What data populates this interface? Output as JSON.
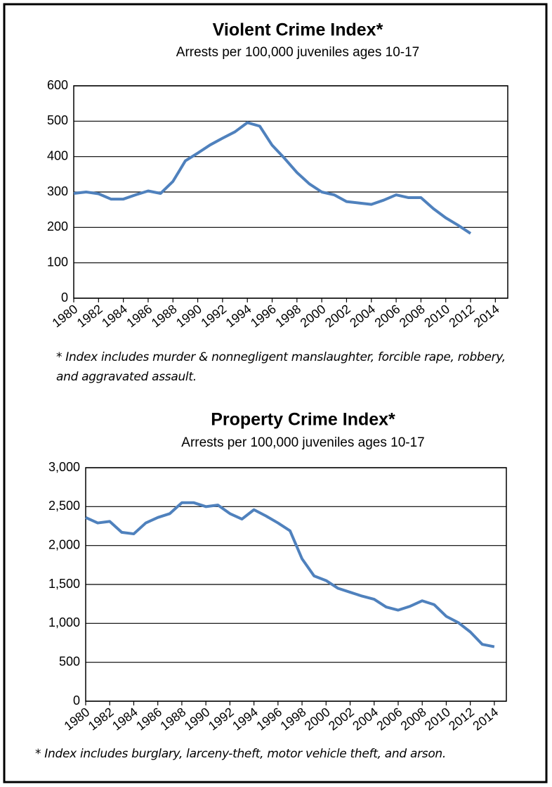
{
  "chart_data": [
    {
      "type": "line",
      "title": "Violent Crime Index*",
      "subtitle": "Arrests per 100,000 juveniles ages 10-17",
      "footnote": "* Index includes murder & nonnegligent manslaughter, forcible rape, robbery, and aggravated assault.",
      "x": [
        1980,
        1981,
        1982,
        1983,
        1984,
        1985,
        1986,
        1987,
        1988,
        1989,
        1990,
        1991,
        1992,
        1993,
        1994,
        1995,
        1996,
        1997,
        1998,
        1999,
        2000,
        2001,
        2002,
        2003,
        2004,
        2005,
        2006,
        2007,
        2008,
        2009,
        2010,
        2011,
        2012
      ],
      "values": [
        296,
        300,
        295,
        280,
        280,
        292,
        303,
        296,
        330,
        388,
        410,
        433,
        452,
        470,
        496,
        486,
        432,
        395,
        355,
        323,
        300,
        292,
        273,
        269,
        265,
        277,
        292,
        284,
        284,
        253,
        227,
        206,
        183
      ],
      "color": "#4f81bd",
      "xlim": [
        1980,
        2015
      ],
      "xticks": [
        1980,
        1982,
        1984,
        1986,
        1988,
        1990,
        1992,
        1994,
        1996,
        1998,
        2000,
        2002,
        2004,
        2006,
        2008,
        2010,
        2012,
        2014
      ],
      "ylim": [
        0,
        600
      ],
      "yticks": [
        0,
        100,
        200,
        300,
        400,
        500,
        600
      ],
      "grid": true
    },
    {
      "type": "line",
      "title": "Property Crime Index*",
      "subtitle": "Arrests per 100,000 juveniles ages 10-17",
      "footnote": "* Index includes burglary, larceny-theft, motor vehicle theft, and arson.",
      "x": [
        1980,
        1981,
        1982,
        1983,
        1984,
        1985,
        1986,
        1987,
        1988,
        1989,
        1990,
        1991,
        1992,
        1993,
        1994,
        1995,
        1996,
        1997,
        1998,
        1999,
        2000,
        2001,
        2002,
        2003,
        2004,
        2005,
        2006,
        2007,
        2008,
        2009,
        2010,
        2011,
        2012,
        2013,
        2014
      ],
      "values": [
        2360,
        2290,
        2310,
        2170,
        2150,
        2290,
        2360,
        2410,
        2550,
        2550,
        2500,
        2520,
        2410,
        2340,
        2460,
        2380,
        2290,
        2190,
        1830,
        1610,
        1550,
        1450,
        1400,
        1350,
        1310,
        1210,
        1170,
        1220,
        1290,
        1240,
        1090,
        1010,
        890,
        730,
        700
      ],
      "color": "#4f81bd",
      "xlim": [
        1980,
        2015
      ],
      "xticks": [
        1980,
        1982,
        1984,
        1986,
        1988,
        1990,
        1992,
        1994,
        1996,
        1998,
        2000,
        2002,
        2004,
        2006,
        2008,
        2010,
        2012,
        2014
      ],
      "ylim": [
        0,
        3000
      ],
      "yticks": [
        0,
        {
          "value": 500,
          "label": "500"
        },
        {
          "value": 1000,
          "label": "1,000"
        },
        {
          "value": 1500,
          "label": "1,500"
        },
        {
          "value": 2000,
          "label": "2,000"
        },
        {
          "value": 2500,
          "label": "2,500"
        },
        {
          "value": 3000,
          "label": "3,000"
        }
      ],
      "grid": true
    }
  ]
}
